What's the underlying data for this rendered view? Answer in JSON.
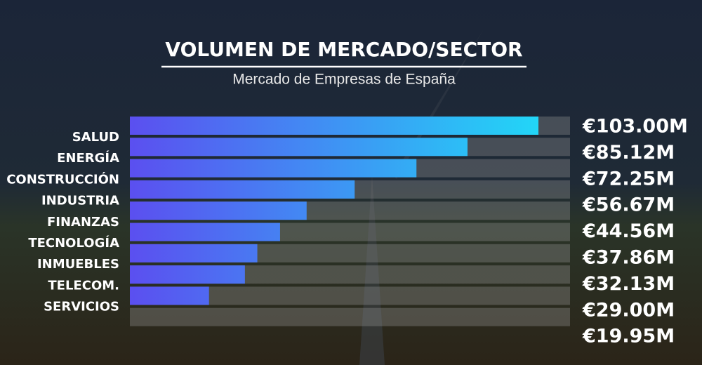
{
  "chart_data": {
    "type": "bar",
    "orientation": "horizontal",
    "title": "VOLUMEN DE MERCADO/SECTOR",
    "subtitle": "Mercado de Empresas de España",
    "categories": [
      "SALUD",
      "ENERGÍA",
      "CONSTRUCCIÓN",
      "INDUSTRIA",
      "FINANZAS",
      "TECNOLOGÍA",
      "INMUEBLES",
      "TELECOM.",
      "SERVICIOS"
    ],
    "values": [
      103.0,
      85.12,
      72.25,
      56.67,
      44.56,
      37.86,
      32.13,
      29.0,
      19.95
    ],
    "value_labels": [
      "€103.00M",
      "€85.12M",
      "€72.25M",
      "€56.67M",
      "€44.56M",
      "€37.86M",
      "€32.13M",
      "€29.00M",
      "€19.95M"
    ],
    "gradient": [
      "#5b4ff0",
      "#22d6f7"
    ]
  }
}
